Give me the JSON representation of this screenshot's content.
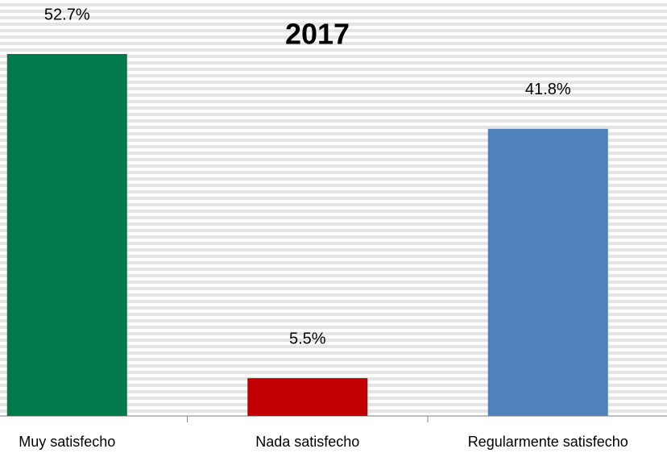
{
  "chart_data": {
    "type": "bar",
    "title": "2017",
    "categories": [
      "Muy satisfecho",
      "Nada satisfecho",
      "Regularmente satisfecho"
    ],
    "values": [
      52.7,
      5.5,
      41.8
    ],
    "value_labels": [
      "52.7%",
      "5.5%",
      "41.8%"
    ],
    "colors": [
      "#037a4b",
      "#c00000",
      "#4f81bd"
    ]
  }
}
